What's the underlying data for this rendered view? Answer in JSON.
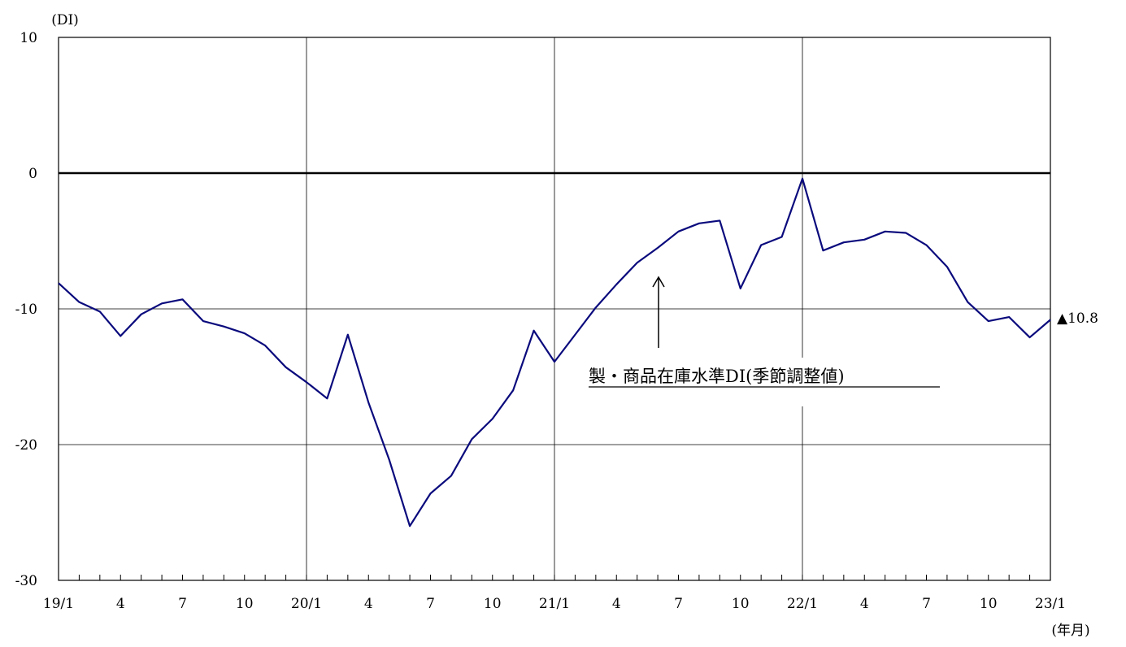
{
  "chart_data": {
    "type": "line",
    "ylabel": "(DI)",
    "xlabel": "(年月)",
    "ylim": [
      -30,
      10
    ],
    "yticks": [
      10,
      0,
      -10,
      -20,
      -30
    ],
    "ytick_labels": [
      "10",
      "0",
      "-10",
      "-20",
      "-30"
    ],
    "x_period": "2019/1 – 2023/1 (monthly)",
    "xtick_labels": [
      "19/1",
      "4",
      "7",
      "10",
      "20/1",
      "4",
      "7",
      "10",
      "21/1",
      "4",
      "7",
      "10",
      "22/1",
      "4",
      "7",
      "10",
      "23/1"
    ],
    "grid": true,
    "zero_line": true,
    "line_color": "#0a0a7d",
    "series": [
      {
        "name": "製・商品在庫水準DI(季節調整値)",
        "values": [
          -8.1,
          -9.5,
          -10.2,
          -12.0,
          -10.4,
          -9.6,
          -9.3,
          -10.9,
          -11.3,
          -11.8,
          -12.7,
          -14.3,
          -15.4,
          -16.6,
          -11.9,
          -16.9,
          -21.1,
          -26.0,
          -23.6,
          -22.3,
          -19.6,
          -18.1,
          -16.0,
          -11.6,
          -13.9,
          -11.9,
          -9.9,
          -8.2,
          -6.6,
          -5.5,
          -4.3,
          -3.7,
          -3.5,
          -8.5,
          -5.3,
          -4.7,
          -0.4,
          -5.7,
          -5.1,
          -4.9,
          -4.3,
          -4.4,
          -5.3,
          -6.9,
          -9.5,
          -10.9,
          -10.6,
          -12.1,
          -10.8
        ]
      }
    ],
    "annotation": {
      "text": "製・商品在庫水準DI(季節調整値)",
      "arrow_target_index": 29
    },
    "last_value_label": "▲10.8"
  }
}
